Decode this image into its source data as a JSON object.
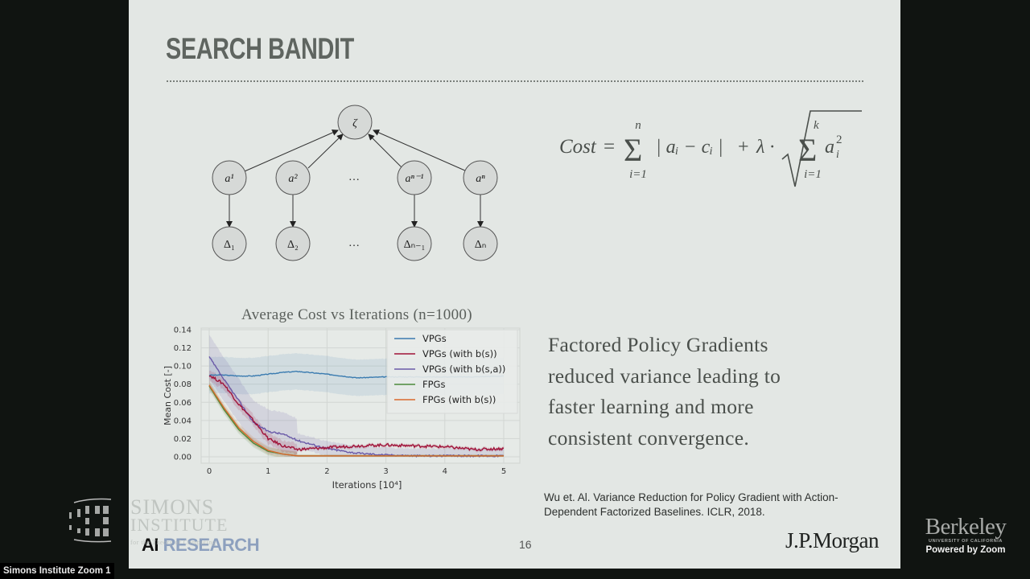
{
  "slide": {
    "title": "SEARCH BANDIT",
    "page_number": "16",
    "description": [
      "Factored Policy Gradients",
      "reduced variance leading to",
      "faster learning and more",
      "consistent convergence."
    ],
    "citation": [
      "Wu et. Al. Variance Reduction for Policy Gradient with Action-",
      "Dependent Factorized Baselines. ICLR, 2018."
    ],
    "brand_logo": "J.P.Morgan",
    "ai_research": {
      "ai": "AI",
      "research": "RESEARCH"
    }
  },
  "graph": {
    "root_node": "ζ",
    "action_nodes": [
      "a¹",
      "a²",
      "…",
      "aⁿ⁻¹",
      "aⁿ"
    ],
    "delta_nodes": [
      "Δ₁",
      "Δ₂",
      "…",
      "Δₙ₋₁",
      "Δₙ"
    ]
  },
  "formula": {
    "lhs": "Cost",
    "equals": "=",
    "sum1_upper": "n",
    "sum1_lower": "i=1",
    "term1": "| aᵢ − cᵢ |",
    "plus": "+",
    "lambda": "λ ·",
    "sum2_upper": "k",
    "sum2_lower": "i=1",
    "term2_base": "a",
    "term2_sub": "i",
    "term2_sup": "2"
  },
  "chart_data": {
    "type": "line",
    "title": "Average Cost vs Iterations",
    "subtitle": "(n=1000)",
    "xlabel": "Iterations [10⁴]",
    "ylabel": "Mean Cost [-]",
    "xlim": [
      0,
      5
    ],
    "ylim": [
      0,
      0.14
    ],
    "xticks": [
      "0",
      "1",
      "2",
      "3",
      "4",
      "5"
    ],
    "yticks": [
      "0.00",
      "0.02",
      "0.04",
      "0.06",
      "0.08",
      "0.10",
      "0.12",
      "0.14"
    ],
    "grid": true,
    "legend_position": "upper right",
    "x": [
      0,
      0.25,
      0.5,
      0.75,
      1,
      1.25,
      1.5,
      2,
      2.5,
      3,
      3.5,
      4,
      4.5,
      5
    ],
    "series": [
      {
        "name": "VPGs",
        "color": "#3a7bb0",
        "values": [
          0.09,
          0.09,
          0.089,
          0.089,
          0.091,
          0.093,
          0.094,
          0.091,
          0.087,
          0.088,
          0.088,
          0.088,
          0.088,
          0.089
        ]
      },
      {
        "name": "VPGs (with b(s))",
        "color": "#a01239",
        "values": [
          0.09,
          0.08,
          0.058,
          0.04,
          0.02,
          0.012,
          0.008,
          0.01,
          0.012,
          0.013,
          0.012,
          0.011,
          0.008,
          0.009
        ]
      },
      {
        "name": "VPGs (with b(s,a))",
        "color": "#6a5aa8",
        "values": [
          0.11,
          0.085,
          0.062,
          0.038,
          0.028,
          0.025,
          0.018,
          0.009,
          0.004,
          0.002,
          0.001,
          0.001,
          0.001,
          0.001
        ]
      },
      {
        "name": "FPGs",
        "color": "#4b8a3a",
        "values": [
          0.078,
          0.052,
          0.03,
          0.015,
          0.006,
          0.003,
          0.001,
          0.001,
          0.001,
          0.001,
          0.001,
          0.001,
          0.001,
          0.001
        ]
      },
      {
        "name": "FPGs (with b(s))",
        "color": "#d9692c",
        "values": [
          0.079,
          0.054,
          0.032,
          0.017,
          0.007,
          0.003,
          0.001,
          0.001,
          0.001,
          0.001,
          0.001,
          0.001,
          0.001,
          0.001
        ]
      }
    ]
  },
  "overlay": {
    "simons": [
      "SIMONS",
      "INSTITUTE",
      "for the Theory of Computing"
    ],
    "participant_label": "Simons Institute Zoom 1",
    "berkeley": "Berkeley",
    "berkeley_sub": "UNIVERSITY OF CALIFORNIA",
    "powered_by": "Powered by Zoom"
  }
}
